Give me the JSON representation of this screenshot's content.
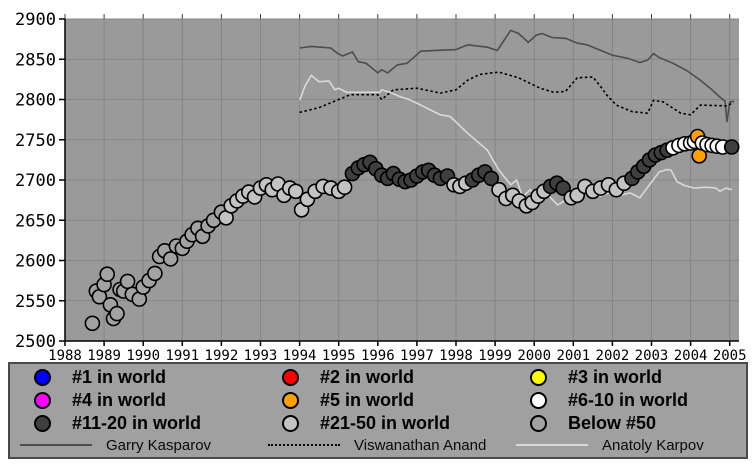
{
  "legend": {
    "ranks": [
      {
        "label": "#1 in world",
        "color": "#0000ff"
      },
      {
        "label": "#2 in world",
        "color": "#ff0000"
      },
      {
        "label": "#3 in world",
        "color": "#ffff00"
      },
      {
        "label": "#4 in world",
        "color": "#ff00ff"
      },
      {
        "label": "#5 in world",
        "color": "#ffa000"
      },
      {
        "label": "#6-10 in world",
        "color": "#ffffff"
      },
      {
        "label": "#11-20 in world",
        "color": "#3f3f3f"
      },
      {
        "label": "#21-50 in world",
        "color": "#c3c3c3"
      },
      {
        "label": "Below #50",
        "color": "#a2a2a2"
      }
    ],
    "lines": [
      {
        "label": "Garry Kasparov",
        "color": "#4d4d4d",
        "style": "solid"
      },
      {
        "label": "Viswanathan Anand",
        "color": "#000000",
        "style": "dotted"
      },
      {
        "label": "Anatoly Karpov",
        "color": "#d9d9d9",
        "style": "solid"
      }
    ]
  },
  "chart_data": {
    "type": "scatter",
    "title": "",
    "xlabel": "",
    "ylabel": "",
    "grid": true,
    "plot_bg": "#9a9a9a",
    "grid_color": "#858585",
    "x_axis": {
      "min": 1988,
      "max": 2005,
      "ticks": [
        1988,
        1989,
        1990,
        1991,
        1992,
        1993,
        1994,
        1995,
        1996,
        1997,
        1998,
        1999,
        2000,
        2001,
        2002,
        2003,
        2004,
        2005
      ]
    },
    "y_axis": {
      "min": 2500,
      "max": 2900,
      "ticks": [
        2500,
        2550,
        2600,
        2650,
        2700,
        2750,
        2800,
        2850,
        2900
      ]
    },
    "rank_colors": {
      "1": "#0000ff",
      "2": "#ff0000",
      "3": "#ffff00",
      "4": "#ff00ff",
      "5": "#ffa000",
      "6-10": "#fdfdfd",
      "11-20": "#3f3f3f",
      "21-50": "#c3c3c3",
      "50+": "#a2a2a2"
    },
    "scatter_points": [
      [
        1988.7,
        2522,
        "50+"
      ],
      [
        1988.8,
        2562,
        "50+"
      ],
      [
        1988.88,
        2555,
        "50+"
      ],
      [
        1989.0,
        2570,
        "50+"
      ],
      [
        1989.08,
        2583,
        "50+"
      ],
      [
        1989.16,
        2545,
        "50+"
      ],
      [
        1989.24,
        2528,
        "50+"
      ],
      [
        1989.33,
        2534,
        "50+"
      ],
      [
        1989.41,
        2564,
        "50+"
      ],
      [
        1989.5,
        2562,
        "50+"
      ],
      [
        1989.6,
        2574,
        "50+"
      ],
      [
        1989.72,
        2558,
        "50+"
      ],
      [
        1989.9,
        2552,
        "50+"
      ],
      [
        1990.0,
        2567,
        "50+"
      ],
      [
        1990.15,
        2575,
        "50+"
      ],
      [
        1990.3,
        2584,
        "50+"
      ],
      [
        1990.42,
        2605,
        "50+"
      ],
      [
        1990.55,
        2612,
        "50+"
      ],
      [
        1990.7,
        2602,
        "50+"
      ],
      [
        1990.85,
        2618,
        "50+"
      ],
      [
        1991.0,
        2615,
        "50+"
      ],
      [
        1991.12,
        2624,
        "50+"
      ],
      [
        1991.25,
        2632,
        "50+"
      ],
      [
        1991.4,
        2640,
        "50+"
      ],
      [
        1991.52,
        2630,
        "50+"
      ],
      [
        1991.66,
        2643,
        "50+"
      ],
      [
        1991.8,
        2650,
        "50+"
      ],
      [
        1992.0,
        2660,
        "50+"
      ],
      [
        1992.12,
        2653,
        "21-50"
      ],
      [
        1992.25,
        2668,
        "21-50"
      ],
      [
        1992.4,
        2674,
        "21-50"
      ],
      [
        1992.55,
        2680,
        "21-50"
      ],
      [
        1992.7,
        2685,
        "21-50"
      ],
      [
        1992.85,
        2679,
        "21-50"
      ],
      [
        1993.0,
        2690,
        "21-50"
      ],
      [
        1993.15,
        2694,
        "21-50"
      ],
      [
        1993.3,
        2688,
        "21-50"
      ],
      [
        1993.45,
        2695,
        "21-50"
      ],
      [
        1993.6,
        2681,
        "21-50"
      ],
      [
        1993.75,
        2690,
        "21-50"
      ],
      [
        1993.9,
        2686,
        "21-50"
      ],
      [
        1994.05,
        2663,
        "21-50"
      ],
      [
        1994.2,
        2676,
        "21-50"
      ],
      [
        1994.4,
        2686,
        "21-50"
      ],
      [
        1994.6,
        2692,
        "21-50"
      ],
      [
        1994.8,
        2690,
        "21-50"
      ],
      [
        1995.0,
        2686,
        "21-50"
      ],
      [
        1995.15,
        2691,
        "21-50"
      ],
      [
        1995.35,
        2708,
        "11-20"
      ],
      [
        1995.5,
        2715,
        "11-20"
      ],
      [
        1995.65,
        2719,
        "11-20"
      ],
      [
        1995.8,
        2722,
        "11-20"
      ],
      [
        1995.95,
        2714,
        "11-20"
      ],
      [
        1996.1,
        2706,
        "11-20"
      ],
      [
        1996.25,
        2702,
        "11-20"
      ],
      [
        1996.4,
        2708,
        "11-20"
      ],
      [
        1996.55,
        2701,
        "11-20"
      ],
      [
        1996.7,
        2698,
        "11-20"
      ],
      [
        1996.85,
        2700,
        "11-20"
      ],
      [
        1997.0,
        2705,
        "11-20"
      ],
      [
        1997.15,
        2710,
        "11-20"
      ],
      [
        1997.3,
        2712,
        "11-20"
      ],
      [
        1997.45,
        2706,
        "11-20"
      ],
      [
        1997.6,
        2702,
        "11-20"
      ],
      [
        1997.78,
        2705,
        "11-20"
      ],
      [
        1997.95,
        2694,
        "21-50"
      ],
      [
        1998.1,
        2692,
        "21-50"
      ],
      [
        1998.25,
        2696,
        "21-50"
      ],
      [
        1998.42,
        2700,
        "11-20"
      ],
      [
        1998.58,
        2706,
        "11-20"
      ],
      [
        1998.74,
        2710,
        "11-20"
      ],
      [
        1998.9,
        2702,
        "11-20"
      ],
      [
        1999.1,
        2688,
        "21-50"
      ],
      [
        1999.28,
        2677,
        "21-50"
      ],
      [
        1999.45,
        2681,
        "21-50"
      ],
      [
        1999.62,
        2674,
        "21-50"
      ],
      [
        1999.8,
        2668,
        "21-50"
      ],
      [
        1999.95,
        2672,
        "21-50"
      ],
      [
        2000.1,
        2680,
        "21-50"
      ],
      [
        2000.25,
        2686,
        "21-50"
      ],
      [
        2000.42,
        2692,
        "11-20"
      ],
      [
        2000.58,
        2696,
        "11-20"
      ],
      [
        2000.74,
        2690,
        "11-20"
      ],
      [
        2000.95,
        2678,
        "21-50"
      ],
      [
        2001.1,
        2681,
        "21-50"
      ],
      [
        2001.3,
        2692,
        "21-50"
      ],
      [
        2001.5,
        2686,
        "21-50"
      ],
      [
        2001.7,
        2690,
        "21-50"
      ],
      [
        2001.9,
        2694,
        "21-50"
      ],
      [
        2002.1,
        2688,
        "21-50"
      ],
      [
        2002.3,
        2696,
        "21-50"
      ],
      [
        2002.5,
        2702,
        "11-20"
      ],
      [
        2002.65,
        2710,
        "11-20"
      ],
      [
        2002.8,
        2717,
        "11-20"
      ],
      [
        2002.95,
        2725,
        "11-20"
      ],
      [
        2003.1,
        2731,
        "11-20"
      ],
      [
        2003.25,
        2734,
        "11-20"
      ],
      [
        2003.4,
        2737,
        "11-20"
      ],
      [
        2003.55,
        2740,
        "6-10"
      ],
      [
        2003.7,
        2743,
        "6-10"
      ],
      [
        2003.85,
        2745,
        "6-10"
      ],
      [
        2004.0,
        2746,
        "6-10"
      ],
      [
        2004.1,
        2748,
        "6-10"
      ],
      [
        2004.18,
        2754,
        "5"
      ],
      [
        2004.22,
        2730,
        "5"
      ],
      [
        2004.3,
        2746,
        "6-10"
      ],
      [
        2004.42,
        2744,
        "6-10"
      ],
      [
        2004.55,
        2743,
        "6-10"
      ],
      [
        2004.68,
        2742,
        "6-10"
      ],
      [
        2004.82,
        2741,
        "6-10"
      ],
      [
        2005.05,
        2741,
        "11-20"
      ]
    ],
    "lines": [
      {
        "name": "Garry Kasparov",
        "color": "#4d4d4d",
        "style": "solid",
        "points": [
          [
            1994.0,
            2864
          ],
          [
            1994.3,
            2866
          ],
          [
            1994.8,
            2864
          ],
          [
            1994.95,
            2858
          ],
          [
            1995.1,
            2854
          ],
          [
            1995.35,
            2859
          ],
          [
            1995.5,
            2847
          ],
          [
            1995.7,
            2845
          ],
          [
            1996.0,
            2833
          ],
          [
            1996.1,
            2837
          ],
          [
            1996.25,
            2833
          ],
          [
            1996.5,
            2843
          ],
          [
            1996.75,
            2845
          ],
          [
            1997.1,
            2860
          ],
          [
            1997.5,
            2861
          ],
          [
            1998.0,
            2862
          ],
          [
            1998.3,
            2868
          ],
          [
            1998.8,
            2865
          ],
          [
            1999.05,
            2861
          ],
          [
            1999.1,
            2864
          ],
          [
            1999.4,
            2886
          ],
          [
            1999.6,
            2882
          ],
          [
            1999.85,
            2871
          ],
          [
            2000.05,
            2880
          ],
          [
            2000.2,
            2882
          ],
          [
            2000.45,
            2877
          ],
          [
            2000.8,
            2876
          ],
          [
            2001.1,
            2870
          ],
          [
            2001.35,
            2868
          ],
          [
            2001.7,
            2861
          ],
          [
            2002.0,
            2855
          ],
          [
            2002.4,
            2851
          ],
          [
            2002.7,
            2846
          ],
          [
            2002.9,
            2849
          ],
          [
            2003.05,
            2857
          ],
          [
            2003.2,
            2852
          ],
          [
            2003.55,
            2845
          ],
          [
            2003.9,
            2836
          ],
          [
            2004.25,
            2824
          ],
          [
            2004.5,
            2814
          ],
          [
            2004.75,
            2803
          ],
          [
            2004.88,
            2798
          ],
          [
            2004.93,
            2772
          ],
          [
            2005.0,
            2797
          ],
          [
            2005.1,
            2798
          ]
        ]
      },
      {
        "name": "Viswanathan Anand",
        "color": "#000000",
        "style": "dotted",
        "points": [
          [
            1994.0,
            2784
          ],
          [
            1994.5,
            2790
          ],
          [
            1995.0,
            2800
          ],
          [
            1995.3,
            2806
          ],
          [
            1996.0,
            2806
          ],
          [
            1996.1,
            2800
          ],
          [
            1996.4,
            2812
          ],
          [
            1997.0,
            2814
          ],
          [
            1997.6,
            2808
          ],
          [
            1998.0,
            2812
          ],
          [
            1998.3,
            2824
          ],
          [
            1998.6,
            2831
          ],
          [
            1998.9,
            2833
          ],
          [
            1999.1,
            2834
          ],
          [
            1999.6,
            2827
          ],
          [
            2000.15,
            2814
          ],
          [
            2000.5,
            2809
          ],
          [
            2000.8,
            2810
          ],
          [
            2001.1,
            2827
          ],
          [
            2001.5,
            2828
          ],
          [
            2001.7,
            2816
          ],
          [
            2001.85,
            2806
          ],
          [
            2002.1,
            2793
          ],
          [
            2002.5,
            2785
          ],
          [
            2002.9,
            2783
          ],
          [
            2003.05,
            2799
          ],
          [
            2003.3,
            2797
          ],
          [
            2003.75,
            2783
          ],
          [
            2004.0,
            2781
          ],
          [
            2004.25,
            2793
          ],
          [
            2004.95,
            2792
          ],
          [
            2005.1,
            2797
          ]
        ]
      },
      {
        "name": "Anatoly Karpov",
        "color": "#d9d9d9",
        "style": "solid",
        "points": [
          [
            1994.0,
            2799
          ],
          [
            1994.15,
            2818
          ],
          [
            1994.3,
            2830
          ],
          [
            1994.5,
            2822
          ],
          [
            1994.75,
            2823
          ],
          [
            1994.9,
            2812
          ],
          [
            1995.0,
            2814
          ],
          [
            1995.2,
            2809
          ],
          [
            1996.05,
            2809
          ],
          [
            1996.1,
            2812
          ],
          [
            1996.3,
            2809
          ],
          [
            1996.6,
            2803
          ],
          [
            1996.8,
            2800
          ],
          [
            1997.1,
            2793
          ],
          [
            1997.35,
            2787
          ],
          [
            1997.6,
            2781
          ],
          [
            1997.85,
            2779
          ],
          [
            1998.3,
            2758
          ],
          [
            1998.8,
            2737
          ],
          [
            1999.1,
            2712
          ],
          [
            1999.4,
            2694
          ],
          [
            1999.55,
            2700
          ],
          [
            1999.7,
            2679
          ],
          [
            1999.9,
            2688
          ],
          [
            2000.1,
            2675
          ],
          [
            2000.4,
            2679
          ],
          [
            2000.6,
            2669
          ],
          [
            2000.8,
            2675
          ],
          [
            2001.0,
            2688
          ],
          [
            2001.2,
            2684
          ],
          [
            2001.4,
            2688
          ],
          [
            2001.7,
            2680
          ],
          [
            2001.95,
            2685
          ],
          [
            2002.2,
            2681
          ],
          [
            2002.45,
            2684
          ],
          [
            2002.7,
            2678
          ],
          [
            2002.95,
            2694
          ],
          [
            2003.2,
            2710
          ],
          [
            2003.4,
            2713
          ],
          [
            2003.5,
            2712
          ],
          [
            2003.65,
            2698
          ],
          [
            2003.85,
            2693
          ],
          [
            2004.1,
            2690
          ],
          [
            2004.4,
            2691
          ],
          [
            2004.65,
            2690
          ],
          [
            2004.75,
            2686
          ],
          [
            2004.9,
            2690
          ],
          [
            2005.05,
            2688
          ]
        ]
      }
    ]
  }
}
